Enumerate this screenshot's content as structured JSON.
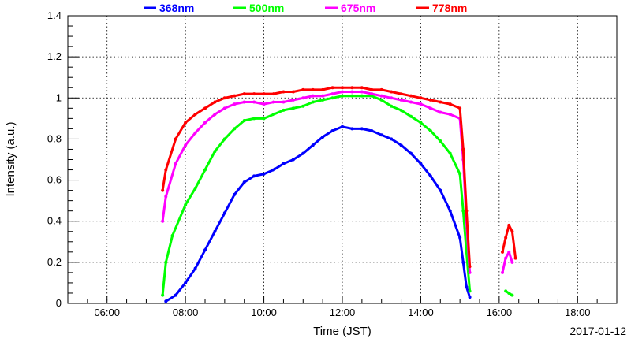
{
  "chart_data": {
    "type": "scatter",
    "xlabel": "Time (JST)",
    "ylabel": "Intensity (a.u.)",
    "date_label": "2017-01-12",
    "xlim": [
      "05:00",
      "19:00"
    ],
    "ylim": [
      0,
      1.4
    ],
    "x_ticks": [
      "06:00",
      "08:00",
      "10:00",
      "12:00",
      "14:00",
      "16:00",
      "18:00"
    ],
    "y_ticks": [
      "0",
      "0.2",
      "0.4",
      "0.6",
      "0.8",
      "1",
      "1.2",
      "1.4"
    ],
    "grid": true,
    "legend_position": "top",
    "series": [
      {
        "name": "368nm",
        "color": "#0000ff",
        "points": [
          [
            "07:30",
            0.01
          ],
          [
            "07:45",
            0.04
          ],
          [
            "08:00",
            0.1
          ],
          [
            "08:15",
            0.17
          ],
          [
            "08:30",
            0.26
          ],
          [
            "08:45",
            0.35
          ],
          [
            "09:00",
            0.44
          ],
          [
            "09:15",
            0.53
          ],
          [
            "09:30",
            0.59
          ],
          [
            "09:45",
            0.62
          ],
          [
            "10:00",
            0.63
          ],
          [
            "10:15",
            0.65
          ],
          [
            "10:30",
            0.68
          ],
          [
            "10:45",
            0.7
          ],
          [
            "11:00",
            0.73
          ],
          [
            "11:15",
            0.77
          ],
          [
            "11:30",
            0.81
          ],
          [
            "11:45",
            0.84
          ],
          [
            "12:00",
            0.86
          ],
          [
            "12:15",
            0.85
          ],
          [
            "12:30",
            0.85
          ],
          [
            "12:45",
            0.84
          ],
          [
            "13:00",
            0.82
          ],
          [
            "13:15",
            0.8
          ],
          [
            "13:30",
            0.77
          ],
          [
            "13:45",
            0.73
          ],
          [
            "14:00",
            0.68
          ],
          [
            "14:15",
            0.62
          ],
          [
            "14:30",
            0.55
          ],
          [
            "14:45",
            0.45
          ],
          [
            "15:00",
            0.32
          ],
          [
            "15:05",
            0.2
          ],
          [
            "15:10",
            0.08
          ],
          [
            "15:15",
            0.03
          ]
        ]
      },
      {
        "name": "500nm",
        "color": "#00ff00",
        "points": [
          [
            "07:25",
            0.04
          ],
          [
            "07:30",
            0.2
          ],
          [
            "07:40",
            0.33
          ],
          [
            "08:00",
            0.48
          ],
          [
            "08:15",
            0.56
          ],
          [
            "08:30",
            0.65
          ],
          [
            "08:45",
            0.74
          ],
          [
            "09:00",
            0.8
          ],
          [
            "09:15",
            0.85
          ],
          [
            "09:30",
            0.89
          ],
          [
            "09:45",
            0.9
          ],
          [
            "10:00",
            0.9
          ],
          [
            "10:15",
            0.92
          ],
          [
            "10:30",
            0.94
          ],
          [
            "10:45",
            0.95
          ],
          [
            "11:00",
            0.96
          ],
          [
            "11:15",
            0.98
          ],
          [
            "11:30",
            0.99
          ],
          [
            "11:45",
            1.0
          ],
          [
            "12:00",
            1.01
          ],
          [
            "12:15",
            1.01
          ],
          [
            "12:30",
            1.01
          ],
          [
            "12:45",
            1.01
          ],
          [
            "13:00",
            0.99
          ],
          [
            "13:15",
            0.96
          ],
          [
            "13:30",
            0.94
          ],
          [
            "13:45",
            0.91
          ],
          [
            "14:00",
            0.88
          ],
          [
            "14:15",
            0.84
          ],
          [
            "14:30",
            0.79
          ],
          [
            "14:45",
            0.73
          ],
          [
            "15:00",
            0.63
          ],
          [
            "15:05",
            0.45
          ],
          [
            "15:10",
            0.25
          ],
          [
            "15:15",
            0.06
          ],
          [
            "16:10",
            0.06
          ],
          [
            "16:15",
            0.05
          ],
          [
            "16:20",
            0.04
          ]
        ]
      },
      {
        "name": "675nm",
        "color": "#ff00ff",
        "points": [
          [
            "07:25",
            0.4
          ],
          [
            "07:30",
            0.52
          ],
          [
            "07:45",
            0.68
          ],
          [
            "08:00",
            0.77
          ],
          [
            "08:15",
            0.83
          ],
          [
            "08:30",
            0.88
          ],
          [
            "08:45",
            0.92
          ],
          [
            "09:00",
            0.95
          ],
          [
            "09:15",
            0.97
          ],
          [
            "09:30",
            0.98
          ],
          [
            "09:45",
            0.98
          ],
          [
            "10:00",
            0.97
          ],
          [
            "10:15",
            0.98
          ],
          [
            "10:30",
            0.98
          ],
          [
            "10:45",
            0.99
          ],
          [
            "11:00",
            1.0
          ],
          [
            "11:15",
            1.01
          ],
          [
            "11:30",
            1.01
          ],
          [
            "11:45",
            1.02
          ],
          [
            "12:00",
            1.03
          ],
          [
            "12:15",
            1.03
          ],
          [
            "12:30",
            1.03
          ],
          [
            "12:45",
            1.02
          ],
          [
            "13:00",
            1.01
          ],
          [
            "13:15",
            1.0
          ],
          [
            "13:30",
            0.99
          ],
          [
            "13:45",
            0.98
          ],
          [
            "14:00",
            0.97
          ],
          [
            "14:15",
            0.95
          ],
          [
            "14:30",
            0.93
          ],
          [
            "14:45",
            0.92
          ],
          [
            "15:00",
            0.9
          ],
          [
            "15:05",
            0.7
          ],
          [
            "15:10",
            0.4
          ],
          [
            "15:15",
            0.15
          ],
          [
            "16:05",
            0.15
          ],
          [
            "16:10",
            0.22
          ],
          [
            "16:15",
            0.25
          ],
          [
            "16:20",
            0.2
          ]
        ]
      },
      {
        "name": "778nm",
        "color": "#ff0000",
        "points": [
          [
            "07:25",
            0.55
          ],
          [
            "07:30",
            0.65
          ],
          [
            "07:45",
            0.8
          ],
          [
            "08:00",
            0.88
          ],
          [
            "08:15",
            0.92
          ],
          [
            "08:30",
            0.95
          ],
          [
            "08:45",
            0.98
          ],
          [
            "09:00",
            1.0
          ],
          [
            "09:15",
            1.01
          ],
          [
            "09:30",
            1.02
          ],
          [
            "09:45",
            1.02
          ],
          [
            "10:00",
            1.02
          ],
          [
            "10:15",
            1.02
          ],
          [
            "10:30",
            1.03
          ],
          [
            "10:45",
            1.03
          ],
          [
            "11:00",
            1.04
          ],
          [
            "11:15",
            1.04
          ],
          [
            "11:30",
            1.04
          ],
          [
            "11:45",
            1.05
          ],
          [
            "12:00",
            1.05
          ],
          [
            "12:15",
            1.05
          ],
          [
            "12:30",
            1.05
          ],
          [
            "12:45",
            1.04
          ],
          [
            "13:00",
            1.04
          ],
          [
            "13:15",
            1.03
          ],
          [
            "13:30",
            1.02
          ],
          [
            "13:45",
            1.01
          ],
          [
            "14:00",
            1.0
          ],
          [
            "14:15",
            0.99
          ],
          [
            "14:30",
            0.98
          ],
          [
            "14:45",
            0.97
          ],
          [
            "15:00",
            0.95
          ],
          [
            "15:05",
            0.75
          ],
          [
            "15:10",
            0.45
          ],
          [
            "15:15",
            0.18
          ],
          [
            "16:05",
            0.25
          ],
          [
            "16:10",
            0.32
          ],
          [
            "16:15",
            0.38
          ],
          [
            "16:20",
            0.35
          ],
          [
            "16:25",
            0.22
          ]
        ]
      }
    ]
  }
}
